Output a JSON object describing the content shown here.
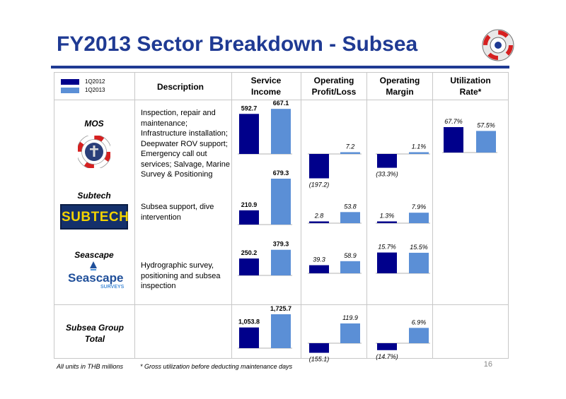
{
  "title": "FY2013 Sector Breakdown - Subsea",
  "legend": [
    {
      "label": "1Q2012",
      "color": "#00008b"
    },
    {
      "label": "1Q2013",
      "color": "#5b8fd6"
    }
  ],
  "headers": {
    "description": "Description",
    "service_income": "Service Income",
    "operating_profit": "Operating Profit/Loss",
    "operating_margin": "Operating Margin",
    "utilization": "Utilization Rate*"
  },
  "sectors": [
    {
      "name": "MOS",
      "description": "Inspection, repair and maintenance; Infrastructure installation; Deepwater ROV support; Emergency call out services; Salvage, Marine Survey & Positioning"
    },
    {
      "name": "Subtech",
      "description": "Subsea support, dive intervention"
    },
    {
      "name": "Seascape",
      "description": "Hydrographic survey, positioning and subsea inspection"
    },
    {
      "name": "Subsea Group Total",
      "description": ""
    }
  ],
  "logos": {
    "subtech": "SUBTECH",
    "seascape": "Seascape",
    "seascape_sub": "SURVEYS"
  },
  "chart_data": {
    "type": "bar",
    "units": "THB millions",
    "series_names": [
      "1Q2012",
      "1Q2013"
    ],
    "rows": [
      {
        "sector": "MOS",
        "service_income": [
          592.7,
          667.1
        ],
        "service_income_labels": [
          "592.7",
          "667.1"
        ],
        "operating_profit": [
          -197.2,
          7.2
        ],
        "operating_profit_labels": [
          "(197.2)",
          "7.2"
        ],
        "operating_margin": [
          -33.3,
          1.1
        ],
        "operating_margin_labels": [
          "(33.3%)",
          "1.1%"
        ],
        "utilization": [
          67.7,
          57.5
        ],
        "utilization_labels": [
          "67.7%",
          "57.5%"
        ]
      },
      {
        "sector": "Subtech",
        "service_income": [
          210.9,
          679.3
        ],
        "service_income_labels": [
          "210.9",
          "679.3"
        ],
        "operating_profit": [
          2.8,
          53.8
        ],
        "operating_profit_labels": [
          "2.8",
          "53.8"
        ],
        "operating_margin": [
          1.3,
          7.9
        ],
        "operating_margin_labels": [
          "1.3%",
          "7.9%"
        ]
      },
      {
        "sector": "Seascape",
        "service_income": [
          250.2,
          379.3
        ],
        "service_income_labels": [
          "250.2",
          "379.3"
        ],
        "operating_profit": [
          39.3,
          58.9
        ],
        "operating_profit_labels": [
          "39.3",
          "58.9"
        ],
        "operating_margin": [
          15.7,
          15.5
        ],
        "operating_margin_labels": [
          "15.7%",
          "15.5%"
        ]
      },
      {
        "sector": "Subsea Group Total",
        "service_income": [
          1053.8,
          1725.7
        ],
        "service_income_labels": [
          "1,053.8",
          "1,725.7"
        ],
        "operating_profit": [
          -155.1,
          119.9
        ],
        "operating_profit_labels": [
          "(155.1)",
          "119.9"
        ],
        "operating_margin": [
          -14.7,
          6.9
        ],
        "operating_margin_labels": [
          "(14.7%)",
          "6.9%"
        ]
      }
    ]
  },
  "footnotes": {
    "units": "All units in THB millions",
    "gross": "* Gross utilization before deducting maintenance days"
  },
  "page_number": "16"
}
